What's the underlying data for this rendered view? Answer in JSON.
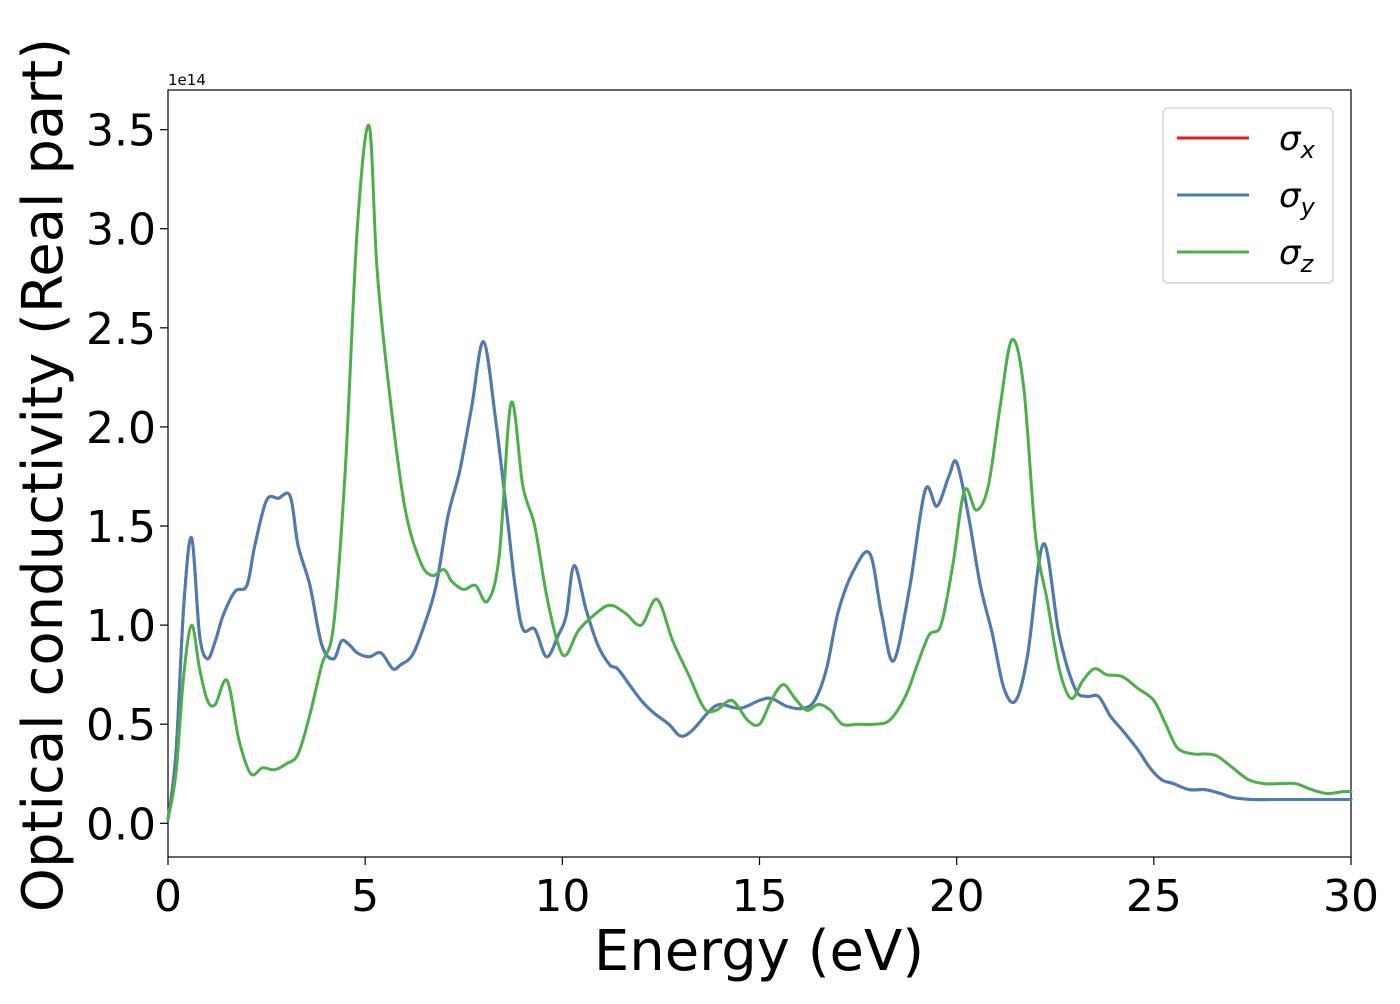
{
  "chart_data": {
    "type": "line",
    "xlabel": "Energy (eV)",
    "ylabel": "Optical conductivity (Real part)",
    "y_offset_text": "1e14",
    "xlim": [
      0,
      30
    ],
    "ylim": [
      -0.17,
      3.7
    ],
    "x_ticks": [
      0,
      5,
      10,
      15,
      20,
      25,
      30
    ],
    "y_ticks": [
      0.0,
      0.5,
      1.0,
      1.5,
      2.0,
      2.5,
      3.0,
      3.5
    ],
    "x_tick_labels": [
      "0",
      "5",
      "10",
      "15",
      "20",
      "25",
      "30"
    ],
    "y_tick_labels": [
      "0.0",
      "0.5",
      "1.0",
      "1.5",
      "2.0",
      "2.5",
      "3.0",
      "3.5"
    ],
    "grid": false,
    "legend_position": "top-right",
    "series": [
      {
        "name": "σx",
        "symbol": "σ",
        "subscript": "x",
        "color": "#e41a1c",
        "x": [
          0,
          0.2,
          0.4,
          0.6,
          0.8,
          1.0,
          1.2,
          1.4,
          1.7,
          2.0,
          2.2,
          2.5,
          2.8,
          3.1,
          3.3,
          3.6,
          3.9,
          4.2,
          4.4,
          4.6,
          4.8,
          5.1,
          5.4,
          5.7,
          5.9,
          6.2,
          6.5,
          6.8,
          7.1,
          7.4,
          7.7,
          8.0,
          8.3,
          8.6,
          8.8,
          9.0,
          9.3,
          9.6,
          9.9,
          10.1,
          10.3,
          10.6,
          10.9,
          11.2,
          11.4,
          11.7,
          12.0,
          12.3,
          12.7,
          13.0,
          13.3,
          13.7,
          14.0,
          14.5,
          15.0,
          15.3,
          15.7,
          16.1,
          16.4,
          16.7,
          17.0,
          17.4,
          17.8,
          18.1,
          18.4,
          18.8,
          19.2,
          19.5,
          19.8,
          20.0,
          20.3,
          20.6,
          20.9,
          21.2,
          21.5,
          21.8,
          22.2,
          22.6,
          23.0,
          23.3,
          23.6,
          23.9,
          24.2,
          24.6,
          24.9,
          25.2,
          25.5,
          25.9,
          26.3,
          26.7,
          27.0,
          27.5,
          28.0,
          28.5,
          29.0,
          29.5,
          30.0
        ],
        "values": [
          0.02,
          0.35,
          1.1,
          1.44,
          0.95,
          0.83,
          0.92,
          1.05,
          1.17,
          1.2,
          1.4,
          1.63,
          1.64,
          1.65,
          1.4,
          1.2,
          0.9,
          0.83,
          0.92,
          0.9,
          0.86,
          0.84,
          0.86,
          0.78,
          0.8,
          0.85,
          1.0,
          1.2,
          1.55,
          1.78,
          2.1,
          2.43,
          2.05,
          1.55,
          1.2,
          0.98,
          0.98,
          0.84,
          0.95,
          1.05,
          1.3,
          1.08,
          0.9,
          0.8,
          0.78,
          0.7,
          0.62,
          0.56,
          0.5,
          0.44,
          0.47,
          0.56,
          0.6,
          0.58,
          0.62,
          0.63,
          0.59,
          0.58,
          0.62,
          0.78,
          1.07,
          1.28,
          1.36,
          1.05,
          0.82,
          1.18,
          1.68,
          1.6,
          1.75,
          1.82,
          1.55,
          1.2,
          0.96,
          0.68,
          0.62,
          0.85,
          1.41,
          0.95,
          0.68,
          0.64,
          0.64,
          0.54,
          0.47,
          0.37,
          0.28,
          0.22,
          0.2,
          0.17,
          0.17,
          0.15,
          0.13,
          0.12,
          0.12,
          0.12,
          0.12,
          0.12,
          0.12
        ]
      },
      {
        "name": "σy",
        "symbol": "σ",
        "subscript": "y",
        "color": "#4a7db3",
        "x": [
          0,
          0.2,
          0.4,
          0.6,
          0.8,
          1.0,
          1.2,
          1.4,
          1.7,
          2.0,
          2.2,
          2.5,
          2.8,
          3.1,
          3.3,
          3.6,
          3.9,
          4.2,
          4.4,
          4.6,
          4.8,
          5.1,
          5.4,
          5.7,
          5.9,
          6.2,
          6.5,
          6.8,
          7.1,
          7.4,
          7.7,
          8.0,
          8.3,
          8.6,
          8.8,
          9.0,
          9.3,
          9.6,
          9.9,
          10.1,
          10.3,
          10.6,
          10.9,
          11.2,
          11.4,
          11.7,
          12.0,
          12.3,
          12.7,
          13.0,
          13.3,
          13.7,
          14.0,
          14.5,
          15.0,
          15.3,
          15.7,
          16.1,
          16.4,
          16.7,
          17.0,
          17.4,
          17.8,
          18.1,
          18.4,
          18.8,
          19.2,
          19.5,
          19.8,
          20.0,
          20.3,
          20.6,
          20.9,
          21.2,
          21.5,
          21.8,
          22.2,
          22.6,
          23.0,
          23.3,
          23.6,
          23.9,
          24.2,
          24.6,
          24.9,
          25.2,
          25.5,
          25.9,
          26.3,
          26.7,
          27.0,
          27.5,
          28.0,
          28.5,
          29.0,
          29.5,
          30.0
        ],
        "values": [
          0.02,
          0.35,
          1.1,
          1.44,
          0.95,
          0.83,
          0.92,
          1.05,
          1.17,
          1.2,
          1.4,
          1.63,
          1.64,
          1.65,
          1.4,
          1.2,
          0.9,
          0.83,
          0.92,
          0.9,
          0.86,
          0.84,
          0.86,
          0.78,
          0.8,
          0.85,
          1.0,
          1.2,
          1.55,
          1.78,
          2.1,
          2.43,
          2.05,
          1.55,
          1.2,
          0.98,
          0.98,
          0.84,
          0.95,
          1.05,
          1.3,
          1.08,
          0.9,
          0.8,
          0.78,
          0.7,
          0.62,
          0.56,
          0.5,
          0.44,
          0.47,
          0.56,
          0.6,
          0.58,
          0.62,
          0.63,
          0.59,
          0.58,
          0.62,
          0.78,
          1.07,
          1.28,
          1.36,
          1.05,
          0.82,
          1.18,
          1.68,
          1.6,
          1.75,
          1.82,
          1.55,
          1.2,
          0.96,
          0.68,
          0.62,
          0.85,
          1.41,
          0.95,
          0.68,
          0.64,
          0.64,
          0.54,
          0.47,
          0.37,
          0.28,
          0.22,
          0.2,
          0.17,
          0.17,
          0.15,
          0.13,
          0.12,
          0.12,
          0.12,
          0.12,
          0.12,
          0.12
        ]
      },
      {
        "name": "σz",
        "symbol": "σ",
        "subscript": "z",
        "color": "#4daf4a",
        "x": [
          0,
          0.2,
          0.4,
          0.6,
          0.8,
          1.0,
          1.2,
          1.5,
          1.8,
          2.1,
          2.4,
          2.7,
          3.0,
          3.3,
          3.6,
          3.9,
          4.2,
          4.5,
          4.8,
          5.1,
          5.3,
          5.6,
          6.0,
          6.4,
          6.7,
          7.0,
          7.2,
          7.5,
          7.8,
          8.1,
          8.4,
          8.7,
          9.0,
          9.3,
          9.6,
          9.9,
          10.1,
          10.4,
          10.8,
          11.2,
          11.6,
          12.0,
          12.4,
          12.8,
          13.2,
          13.6,
          13.9,
          14.3,
          14.7,
          15.0,
          15.3,
          15.6,
          15.9,
          16.2,
          16.5,
          16.8,
          17.1,
          17.5,
          17.9,
          18.3,
          18.7,
          19.0,
          19.3,
          19.6,
          19.9,
          20.2,
          20.5,
          20.8,
          21.1,
          21.4,
          21.7,
          22.0,
          22.3,
          22.6,
          22.9,
          23.2,
          23.5,
          23.8,
          24.2,
          24.6,
          25.0,
          25.3,
          25.6,
          26.0,
          26.3,
          26.6,
          27.0,
          27.4,
          27.8,
          28.2,
          28.6,
          29.0,
          29.4,
          29.8,
          30.0
        ],
        "values": [
          0.02,
          0.25,
          0.75,
          1.0,
          0.78,
          0.62,
          0.6,
          0.72,
          0.42,
          0.25,
          0.28,
          0.27,
          0.3,
          0.35,
          0.55,
          0.8,
          1.0,
          1.8,
          3.0,
          3.52,
          2.8,
          2.2,
          1.6,
          1.32,
          1.25,
          1.28,
          1.22,
          1.18,
          1.2,
          1.12,
          1.35,
          2.12,
          1.7,
          1.5,
          1.15,
          0.9,
          0.85,
          0.97,
          1.05,
          1.1,
          1.06,
          1.0,
          1.13,
          0.92,
          0.75,
          0.58,
          0.57,
          0.62,
          0.52,
          0.5,
          0.62,
          0.7,
          0.63,
          0.57,
          0.6,
          0.57,
          0.5,
          0.5,
          0.5,
          0.52,
          0.64,
          0.8,
          0.95,
          1.0,
          1.3,
          1.68,
          1.58,
          1.7,
          2.1,
          2.44,
          2.2,
          1.45,
          1.12,
          0.78,
          0.63,
          0.72,
          0.78,
          0.75,
          0.74,
          0.68,
          0.62,
          0.5,
          0.38,
          0.35,
          0.35,
          0.34,
          0.28,
          0.22,
          0.2,
          0.2,
          0.2,
          0.17,
          0.15,
          0.16,
          0.16
        ]
      }
    ]
  }
}
